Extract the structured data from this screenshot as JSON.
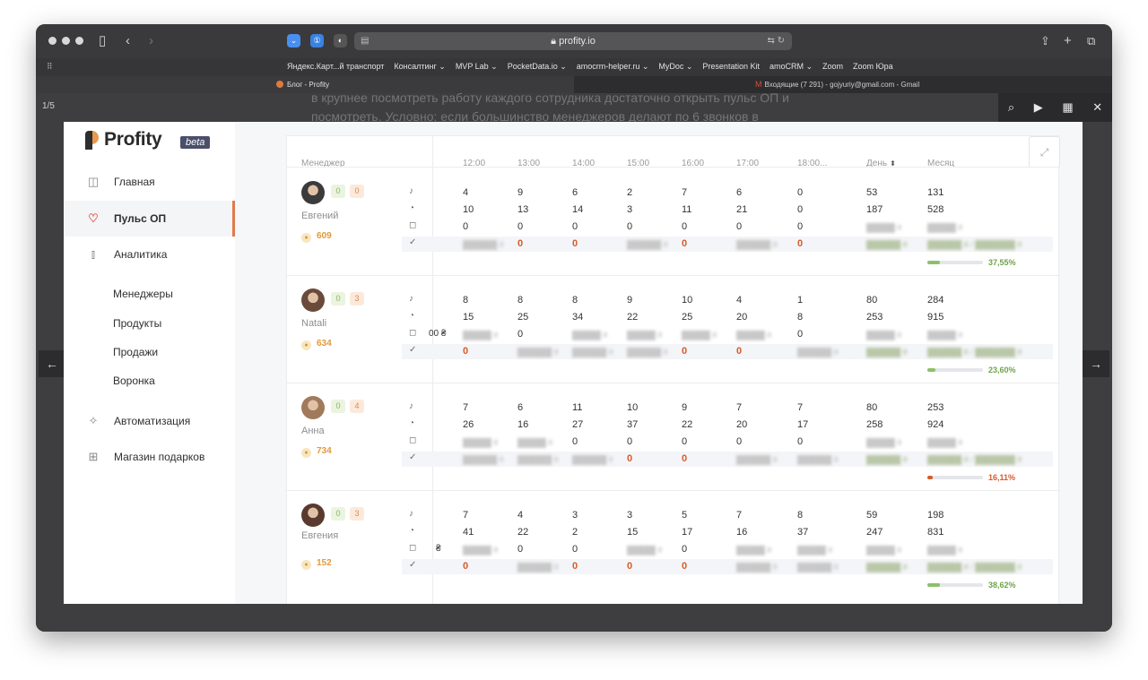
{
  "browser": {
    "url": "profity.io",
    "bookmarks": [
      "Яндекс.Карт...й транспорт",
      "Консалтинг ⌄",
      "MVP Lab ⌄",
      "PocketData.io ⌄",
      "amocrm-helper.ru ⌄",
      "MyDoc ⌄",
      "Presentation Kit",
      "amoCRM ⌄",
      "Zoom",
      "Zoom Юра"
    ],
    "tabs": {
      "active": "Блог - Profity",
      "other": "Входящие (7 291) - gojyuriy@gmail.com - Gmail"
    }
  },
  "viewer": {
    "counter": "1/5",
    "overlay_text": "в крупнее посмотреть работу каждого сотрудника достаточно открыть пульс ОП и посмотреть. Условно: если большинство менеджеров делают по 6 звонков в"
  },
  "app": {
    "logo": "Profity",
    "beta": "beta",
    "nav": [
      {
        "label": "Главная",
        "icon": "dashboard-icon"
      },
      {
        "label": "Пульс ОП",
        "icon": "heart-pulse-icon"
      },
      {
        "label": "Аналитика",
        "icon": "bar-chart-icon"
      }
    ],
    "subnav": [
      "Менеджеры",
      "Продукты",
      "Продажи",
      "Воронка"
    ],
    "nav2": [
      {
        "label": "Автоматизация",
        "icon": "sparkle-icon"
      },
      {
        "label": "Магазин подарков",
        "icon": "gift-icon"
      }
    ]
  },
  "table": {
    "headers": {
      "manager": "Менеджер",
      "hours": [
        "12:00",
        "13:00",
        "14:00",
        "15:00",
        "16:00",
        "17:00",
        "18:00..."
      ],
      "day": "День",
      "month": "Месяц"
    },
    "rows": [
      {
        "name": "Евгений",
        "b1": "0",
        "b2": "0",
        "coins": "609",
        "calls": [
          "4",
          "9",
          "6",
          "2",
          "7",
          "6",
          "0",
          "53",
          "131"
        ],
        "minutes": [
          "10",
          "13",
          "14",
          "3",
          "11",
          "21",
          "0",
          "187",
          "528"
        ],
        "notes": [
          "0",
          "0",
          "0",
          "0",
          "0",
          "0",
          "0"
        ],
        "done": [
          "0",
          "0",
          "0",
          "0"
        ],
        "progress": "37,55%",
        "progress_value": 37.55
      },
      {
        "name": "Natali",
        "b1": "0",
        "b2": "3",
        "coins": "634",
        "calls": [
          "8",
          "8",
          "8",
          "9",
          "10",
          "4",
          "1",
          "80",
          "284"
        ],
        "minutes": [
          "15",
          "25",
          "34",
          "22",
          "25",
          "20",
          "8",
          "253",
          "915"
        ],
        "notes": [
          "0",
          "0"
        ],
        "done": [
          "0",
          "0",
          "0"
        ],
        "progress": "23,60%",
        "progress_value": 23.6
      },
      {
        "name": "Анна",
        "b1": "0",
        "b2": "4",
        "coins": "734",
        "calls": [
          "7",
          "6",
          "11",
          "10",
          "9",
          "7",
          "7",
          "80",
          "253"
        ],
        "minutes": [
          "26",
          "16",
          "27",
          "37",
          "22",
          "20",
          "17",
          "258",
          "924"
        ],
        "notes": [
          "0",
          "0",
          "0",
          "0",
          "0"
        ],
        "done": [
          "0",
          "0"
        ],
        "progress": "16,11%",
        "progress_value": 16.11
      },
      {
        "name": "Евгения",
        "b1": "0",
        "b2": "3",
        "coins": "152",
        "calls": [
          "7",
          "4",
          "3",
          "3",
          "5",
          "7",
          "8",
          "59",
          "198"
        ],
        "minutes": [
          "41",
          "22",
          "2",
          "15",
          "17",
          "16",
          "37",
          "247",
          "831"
        ],
        "notes": [
          "0",
          "0",
          "0"
        ],
        "done": [
          "0",
          "0",
          "0",
          "0"
        ],
        "progress": "38,62%",
        "progress_value": 38.62
      }
    ],
    "trunc_currency": "00 ₴",
    "trunc_currency2": "₴"
  },
  "colors": {
    "accent": "#e07a4e",
    "green": "#8cc06a",
    "orange": "#d85a2a"
  }
}
